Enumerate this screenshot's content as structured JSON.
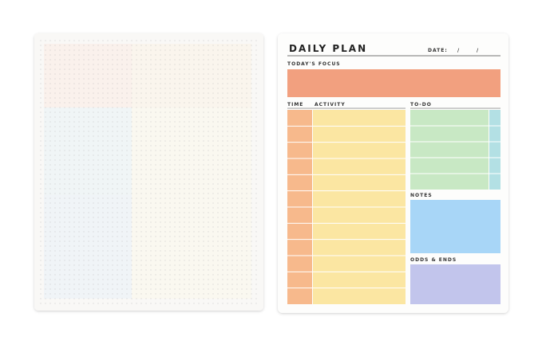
{
  "planner": {
    "title": "DAILY PLAN",
    "date_label": "DATE:",
    "date_separators": [
      "/",
      "/"
    ],
    "focus_label": "TODAY'S FOCUS",
    "time_label": "TIME",
    "activity_label": "ACTIVITY",
    "todo_label": "TO-DO",
    "notes_label": "NOTES",
    "odds_label": "ODDS & ENDS"
  }
}
